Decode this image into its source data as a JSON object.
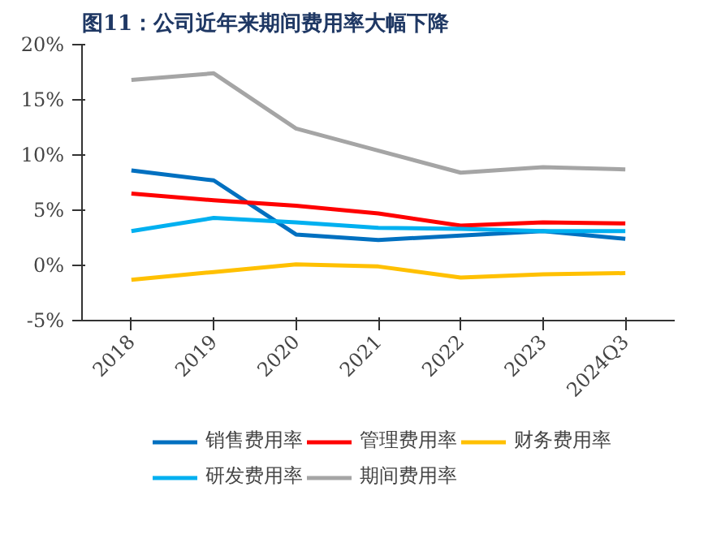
{
  "chart_data": {
    "type": "line",
    "title": "图11：公司近年来期间费用率大幅下降",
    "categories": [
      "2018",
      "2019",
      "2020",
      "2021",
      "2022",
      "2023",
      "2024Q3"
    ],
    "series": [
      {
        "name": "销售费用率",
        "color": "#0070c0",
        "values": [
          8.6,
          7.7,
          2.8,
          2.3,
          2.7,
          3.1,
          2.4
        ]
      },
      {
        "name": "管理费用率",
        "color": "#ff0000",
        "values": [
          6.5,
          5.9,
          5.4,
          4.7,
          3.6,
          3.9,
          3.8
        ]
      },
      {
        "name": "财务费用率",
        "color": "#ffc000",
        "values": [
          -1.3,
          -0.6,
          0.1,
          -0.1,
          -1.1,
          -0.8,
          -0.7
        ]
      },
      {
        "name": "研发费用率",
        "color": "#00b0f0",
        "values": [
          3.1,
          4.3,
          3.9,
          3.4,
          3.3,
          3.1,
          3.1
        ]
      },
      {
        "name": "期间费用率",
        "color": "#a5a5a5",
        "values": [
          16.8,
          17.4,
          12.4,
          10.4,
          8.4,
          8.9,
          8.7
        ]
      }
    ],
    "ylim": [
      -5,
      20
    ],
    "yticks": [
      {
        "value": -5,
        "label": "-5%"
      },
      {
        "value": 0,
        "label": "0%"
      },
      {
        "value": 5,
        "label": "5%"
      },
      {
        "value": 10,
        "label": "10%"
      },
      {
        "value": 15,
        "label": "15%"
      },
      {
        "value": 20,
        "label": "20%"
      }
    ],
    "grid": false,
    "legend": "bottom",
    "marker": "none",
    "line_style": "solid"
  }
}
